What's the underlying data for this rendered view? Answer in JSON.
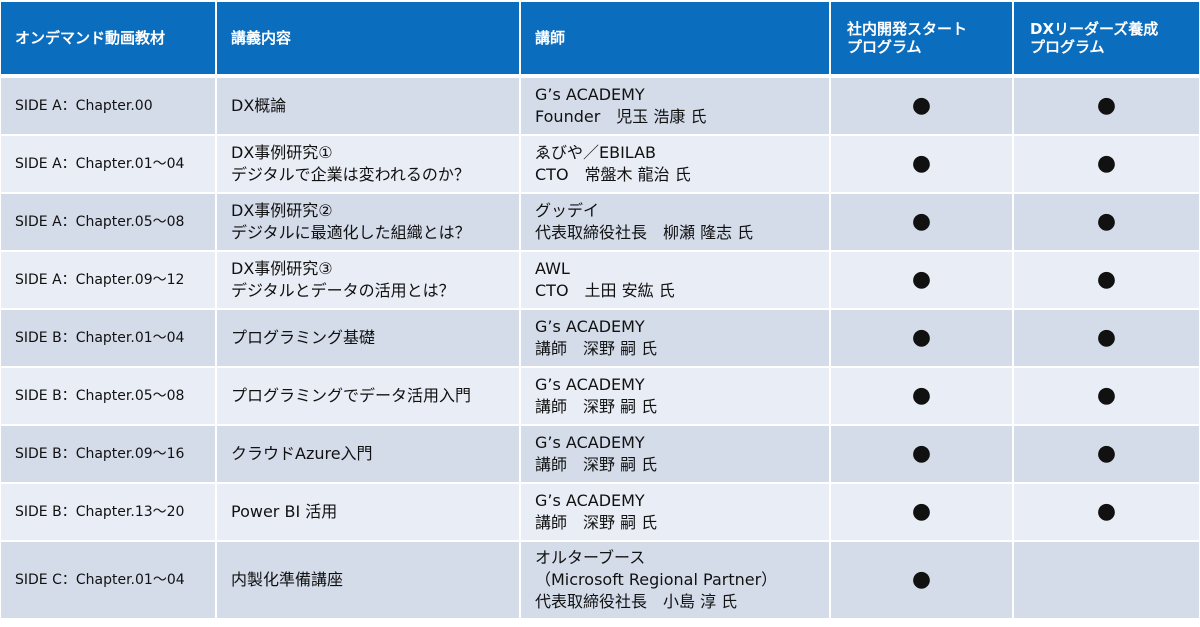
{
  "headers": [
    "オンデマンド動画教材",
    "講義内容",
    "講師",
    "社内開発スタートプログラム",
    "DXリーダーズ養成プログラム"
  ],
  "headers_lines": {
    "p1": [
      "社内開発スタート",
      "プログラム"
    ],
    "p2": [
      "DXリーダーズ養成",
      "プログラム"
    ]
  },
  "rows": [
    {
      "chapter": "SIDE A：Chapter.00",
      "content": [
        "DX概論"
      ],
      "lecturer": [
        "G’s ACADEMY",
        "Founder　児玉 浩康 氏"
      ],
      "p1": "●",
      "p2": "●"
    },
    {
      "chapter": "SIDE A：Chapter.01～04",
      "content": [
        "DX事例研究①",
        "デジタルで企業は変われるのか？"
      ],
      "lecturer": [
        "ゑびや／EBILAB",
        "CTO　常盤木 龍治 氏"
      ],
      "p1": "●",
      "p2": "●"
    },
    {
      "chapter": "SIDE A：Chapter.05～08",
      "content": [
        "DX事例研究②",
        "デジタルに最適化した組織とは？"
      ],
      "lecturer": [
        "グッデイ",
        "代表取締役社長　柳瀬 隆志 氏"
      ],
      "p1": "●",
      "p2": "●"
    },
    {
      "chapter": "SIDE A：Chapter.09～12",
      "content": [
        "DX事例研究③",
        "デジタルとデータの活用とは？"
      ],
      "lecturer": [
        "AWL",
        "CTO　土田 安紘 氏"
      ],
      "p1": "●",
      "p2": "●"
    },
    {
      "chapter": "SIDE B：Chapter.01～04",
      "content": [
        "プログラミング基礎"
      ],
      "lecturer": [
        "G’s ACADEMY",
        "講師　深野 嗣 氏"
      ],
      "p1": "●",
      "p2": "●"
    },
    {
      "chapter": "SIDE B：Chapter.05～08",
      "content": [
        "プログラミングでデータ活用入門"
      ],
      "lecturer": [
        "G’s ACADEMY",
        "講師　深野 嗣 氏"
      ],
      "p1": "●",
      "p2": "●"
    },
    {
      "chapter": "SIDE B：Chapter.09～16",
      "content": [
        "クラウドAzure入門"
      ],
      "lecturer": [
        "G’s ACADEMY",
        "講師　深野 嗣 氏"
      ],
      "p1": "●",
      "p2": "●"
    },
    {
      "chapter": "SIDE B：Chapter.13～20",
      "content": [
        "Power BI 活用"
      ],
      "lecturer": [
        "G’s ACADEMY",
        "講師　深野 嗣 氏"
      ],
      "p1": "●",
      "p2": "●"
    },
    {
      "chapter": "SIDE C：Chapter.01～04",
      "content": [
        "内製化準備講座"
      ],
      "lecturer": [
        "オルターブース",
        "（Microsoft Regional Partner）",
        "代表取締役社長　小島 淳 氏"
      ],
      "p1": "●",
      "p2": ""
    }
  ]
}
